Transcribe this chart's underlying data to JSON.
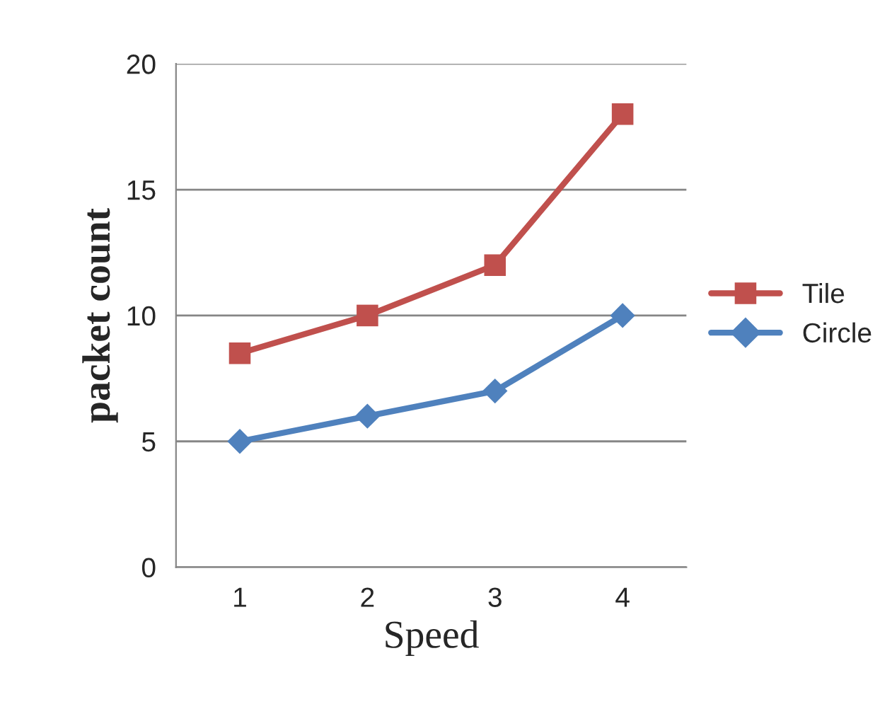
{
  "chart_data": {
    "type": "line",
    "xlabel": "Speed",
    "ylabel": "packet count",
    "categories": [
      "1",
      "2",
      "3",
      "4"
    ],
    "series": [
      {
        "name": "Tile",
        "color": "#c0504d",
        "marker": "square",
        "values": [
          8.5,
          10,
          12,
          18
        ]
      },
      {
        "name": "Circle",
        "color": "#4f81bd",
        "marker": "diamond",
        "values": [
          5,
          6,
          7,
          10
        ]
      }
    ],
    "ylim": [
      0,
      20
    ],
    "yticks": [
      0,
      5,
      10,
      15,
      20
    ],
    "grid": "y",
    "legend": "right"
  }
}
